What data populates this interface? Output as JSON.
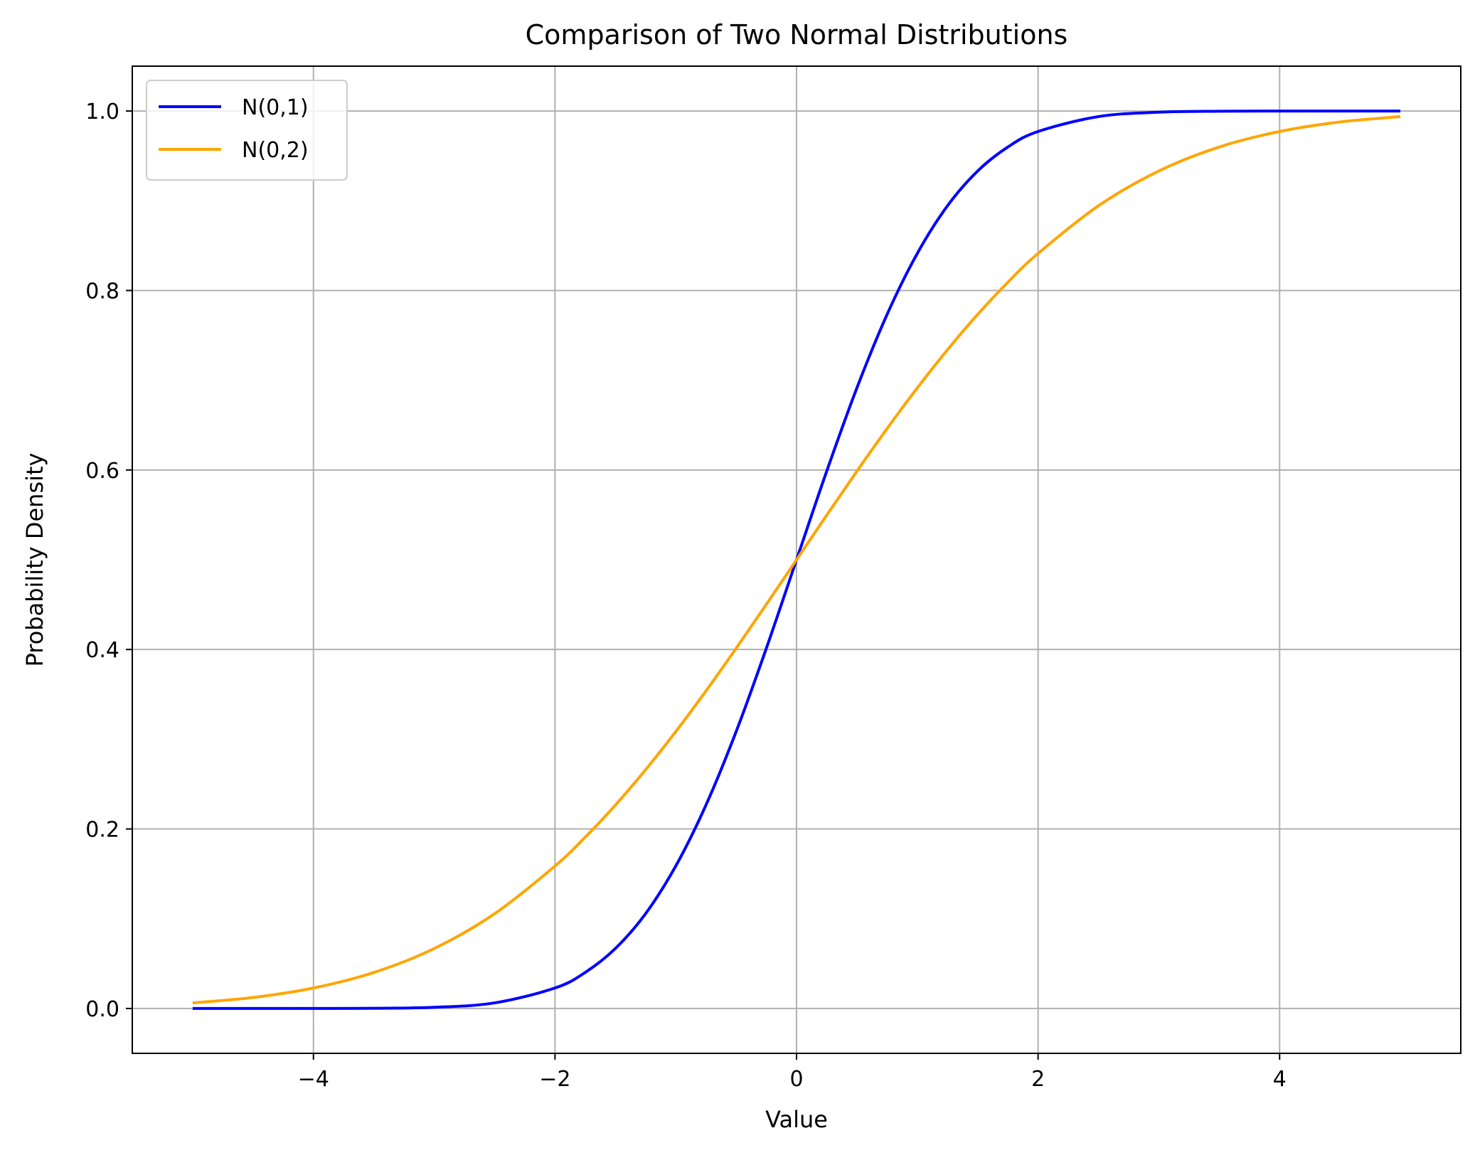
{
  "chart_data": {
    "type": "line",
    "title": "Comparison of Two Normal Distributions",
    "xlabel": "Value",
    "ylabel": "Probability Density",
    "xlim": [
      -5.5,
      5.5
    ],
    "ylim": [
      -0.05,
      1.05
    ],
    "xticks": [
      -4,
      -2,
      0,
      2,
      4
    ],
    "xtick_labels": [
      "−4",
      "−2",
      "0",
      "2",
      "4"
    ],
    "yticks": [
      0.0,
      0.2,
      0.4,
      0.6,
      0.8,
      1.0
    ],
    "ytick_labels": [
      "0.0",
      "0.2",
      "0.4",
      "0.6",
      "0.8",
      "1.0"
    ],
    "grid": true,
    "legend_position": "top-left",
    "x": [
      -5,
      -4.5,
      -4,
      -3.5,
      -3,
      -2.5,
      -2,
      -1.75,
      -1.5,
      -1.25,
      -1,
      -0.75,
      -0.5,
      -0.25,
      0,
      0.25,
      0.5,
      0.75,
      1,
      1.25,
      1.5,
      1.75,
      2,
      2.5,
      3,
      3.5,
      4,
      4.5,
      5
    ],
    "series": [
      {
        "name": "N(0,1)",
        "color": "#0000ff",
        "values": [
          0.0,
          0.0,
          0.0,
          0.0002,
          0.0013,
          0.0062,
          0.0228,
          0.0401,
          0.0668,
          0.1056,
          0.1587,
          0.2266,
          0.3085,
          0.4013,
          0.5,
          0.5987,
          0.6915,
          0.7734,
          0.8413,
          0.8944,
          0.9332,
          0.9599,
          0.9772,
          0.9938,
          0.9987,
          0.9998,
          1.0,
          1.0,
          1.0
        ]
      },
      {
        "name": "N(0,2)",
        "color": "#ffa500",
        "values": [
          0.0062,
          0.0122,
          0.0228,
          0.0401,
          0.0668,
          0.1056,
          0.1587,
          0.1908,
          0.2266,
          0.266,
          0.3085,
          0.3538,
          0.4013,
          0.4503,
          0.5,
          0.5497,
          0.5987,
          0.6462,
          0.6915,
          0.734,
          0.7734,
          0.8092,
          0.8413,
          0.8944,
          0.9332,
          0.9599,
          0.9772,
          0.9878,
          0.9938
        ]
      }
    ]
  }
}
